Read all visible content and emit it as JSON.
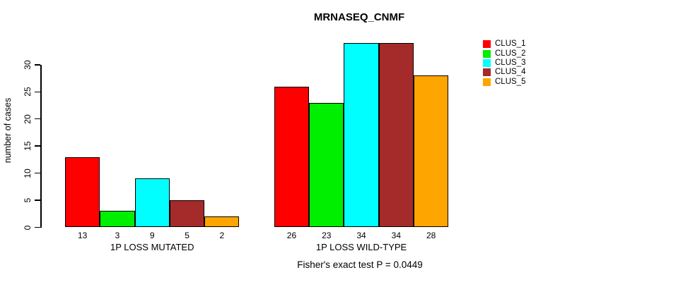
{
  "title": "MRNASEQ_CNMF",
  "footer": "Fisher's exact test P = 0.0449",
  "chart_data": {
    "type": "bar",
    "title": "MRNASEQ_CNMF",
    "xlabel": "",
    "ylabel": "number of cases",
    "categories": [
      "1P LOSS MUTATED",
      "1P LOSS WILD-TYPE"
    ],
    "series": [
      {
        "name": "CLUS_1",
        "color": "#FF0000",
        "values": [
          13,
          26
        ]
      },
      {
        "name": "CLUS_2",
        "color": "#00EE00",
        "values": [
          3,
          23
        ]
      },
      {
        "name": "CLUS_3",
        "color": "#00FFFF",
        "values": [
          9,
          34
        ]
      },
      {
        "name": "CLUS_4",
        "color": "#A52A2A",
        "values": [
          5,
          34
        ]
      },
      {
        "name": "CLUS_5",
        "color": "#FFA500",
        "values": [
          2,
          28
        ]
      }
    ],
    "yticks": [
      0,
      5,
      10,
      15,
      20,
      25,
      30
    ],
    "ylim": [
      0,
      34
    ],
    "grid": false,
    "bar_value_labels": true,
    "legend_position": "right",
    "annotation": "Fisher's exact test P = 0.0449",
    "axis_color": "#000000",
    "bar_border_color": "#000000"
  }
}
